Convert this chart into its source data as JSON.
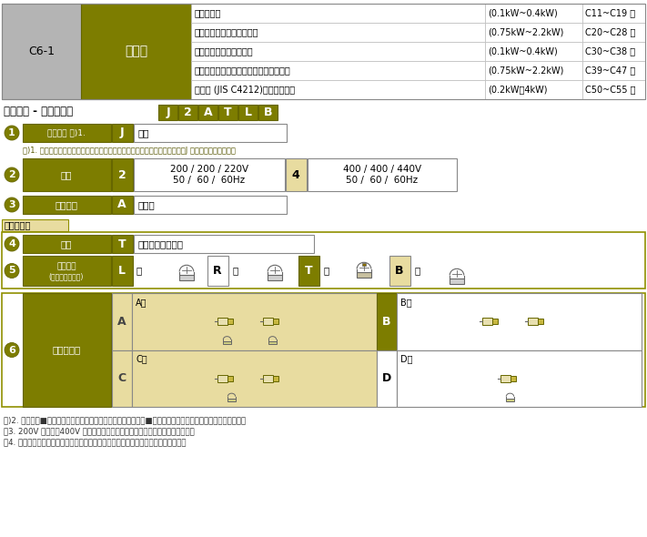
{
  "olive": "#7d7d00",
  "olive_dark": "#6b6b00",
  "light_tan": "#e8dca0",
  "tan_mid": "#d4c878",
  "white": "#ffffff",
  "light_gray": "#b4b4b4",
  "gray": "#888888",
  "border_olive": "#909000",
  "header_rows": [
    [
      "三相モータ",
      "(0.1kW~0.4kW)",
      "C11~C19 頁"
    ],
    [
      "プレミアム効率三相モータ",
      "(0.75kW~2.2kW)",
      "C20~C28 頁"
    ],
    [
      "インバータ用三相モータ",
      "(0.1kW~0.4kW)",
      "C30~C38 頁"
    ],
    [
      "インバータ用プレミアム効率三相モータ",
      "(0.75kW~2.2kW)",
      "C39~C47 頁"
    ],
    [
      "高効率 (JIS C4212)　三相モータ",
      "(0.2kW、4kW)",
      "C50~C55 頁"
    ]
  ],
  "c61": "C6-1",
  "sotogata": "屋外形",
  "section_title": "「屋外形 - 標準仕様」",
  "section_title2": "【屋外形 - 標準仕様】",
  "boxes": [
    "J",
    "2",
    "A",
    "T",
    "L",
    "B"
  ],
  "r1_label": "国別対応 注)1.",
  "r1_code": "J",
  "r1_val": "日本",
  "note1": "注)1. 海外仕様対応／向け先国別モータ仕様の標準仕様とオプション仕様は、J 章をご参照ください。",
  "r2_label": "電圧",
  "r2_code": "2",
  "r2_v1a": "200 / 200 / 220V",
  "r2_v1b": "50 /  60 /  60Hz",
  "r2_code2": "4",
  "r2_v2a": "400 / 400 / 440V",
  "r2_v2b": "50 /  60 /  60Hz",
  "r3_label": "使用環境",
  "r3_code": "A",
  "r3_val": "屋外形",
  "tsec": "端子笱仕様",
  "r4_label": "種類",
  "r4_code": "T",
  "r4_val": "銅板製・端子台式",
  "r5_label1": "取付位置",
  "r5_label2": "(出力側から見て)",
  "r5_L": "L",
  "r5_hidari": "左",
  "r5_R": "R",
  "r5_migi": "右",
  "r5_T": "T",
  "r5_ue": "上",
  "r5_B": "B",
  "r5_shita": "下",
  "r6_label": "引出口方向",
  "r6_A": "A",
  "r6_Ashiki": "A式",
  "r6_B": "B",
  "r6_Bshiki": "B式",
  "r6_C": "C",
  "r6_Cshiki": "C式",
  "r6_D": "D",
  "r6_Dshiki": "D式",
  "note2": "注)2. 濃い緑色■で塗られている箇所は標準仕様です。薄い緑色■で塗られている箇所はオプション仕様です。",
  "note3": "　3. 200V クラス、400V クラス以外の電圧についてはお問い合わせください。",
  "note4": "　4. 屋内形と屋外形とでは標準仕様の引出口方向が異なりますのでご注意ください。"
}
